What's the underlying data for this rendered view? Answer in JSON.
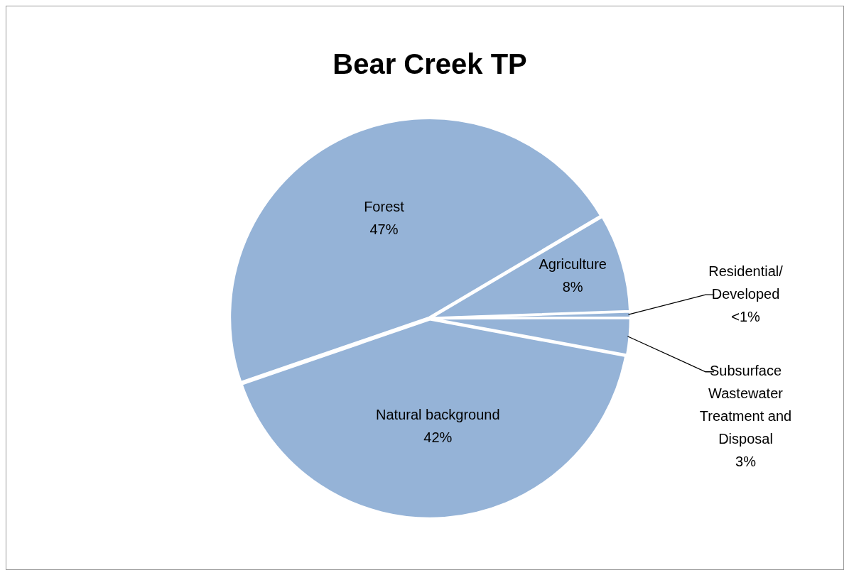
{
  "chart_data": {
    "type": "pie",
    "title": "Bear Creek TP",
    "categories": [
      "Forest",
      "Agriculture",
      "Residential/ Developed",
      "Subsurface Wastewater Treatment and Disposal",
      "Natural background"
    ],
    "values": [
      47,
      8,
      0.5,
      3,
      42
    ],
    "value_labels": [
      "47%",
      "8%",
      "<1%",
      "3%",
      "42%"
    ],
    "colors": [
      "#95b3d7",
      "#95b3d7",
      "#95b3d7",
      "#95b3d7",
      "#95b3d7"
    ],
    "legend": false
  }
}
